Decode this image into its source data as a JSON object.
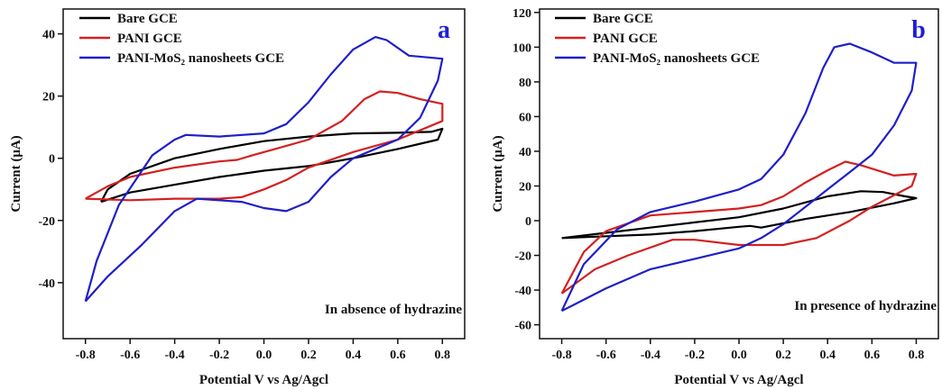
{
  "chart_data": [
    {
      "type": "line",
      "panel_label": "a",
      "annotation": "In absence of hydrazine",
      "xlabel": "Potential V vs Ag/Agcl",
      "ylabel": "Current (μA)",
      "xlim": [
        -0.9,
        0.9
      ],
      "ylim": [
        -58,
        48
      ],
      "xticks": [
        -0.8,
        -0.6,
        -0.4,
        -0.2,
        0.0,
        0.2,
        0.4,
        0.6,
        0.8
      ],
      "xtick_labels": [
        "-0.8",
        "-0.6",
        "-0.4",
        "-0.2",
        "0.0",
        "0.2",
        "0.4",
        "0.6",
        "0.8"
      ],
      "yticks": [
        -40,
        -20,
        0,
        20,
        40
      ],
      "ytick_labels": [
        "-40",
        "-20",
        "0",
        "20",
        "40"
      ],
      "legend_position": "top-left",
      "series": [
        {
          "name": "Bare GCE",
          "color": "#000000",
          "points": [
            [
              -0.73,
              -14
            ],
            [
              -0.7,
              -10
            ],
            [
              -0.6,
              -5
            ],
            [
              -0.4,
              0
            ],
            [
              -0.2,
              3
            ],
            [
              0.0,
              5.5
            ],
            [
              0.2,
              7
            ],
            [
              0.4,
              8
            ],
            [
              0.6,
              8.2
            ],
            [
              0.75,
              8.5
            ],
            [
              0.8,
              9.5
            ],
            [
              0.78,
              6
            ],
            [
              0.6,
              3
            ],
            [
              0.4,
              0
            ],
            [
              0.2,
              -2.5
            ],
            [
              0.0,
              -4
            ],
            [
              -0.2,
              -6
            ],
            [
              -0.4,
              -8.5
            ],
            [
              -0.6,
              -11
            ],
            [
              -0.73,
              -14
            ]
          ]
        },
        {
          "name": "PANI GCE",
          "color": "#d42020",
          "points": [
            [
              -0.8,
              -13
            ],
            [
              -0.7,
              -9
            ],
            [
              -0.6,
              -6
            ],
            [
              -0.4,
              -3
            ],
            [
              -0.2,
              -1
            ],
            [
              -0.12,
              -0.5
            ],
            [
              -0.05,
              1
            ],
            [
              0.05,
              3
            ],
            [
              0.2,
              6
            ],
            [
              0.35,
              12
            ],
            [
              0.45,
              19
            ],
            [
              0.52,
              21.5
            ],
            [
              0.6,
              21
            ],
            [
              0.7,
              19
            ],
            [
              0.8,
              17.5
            ],
            [
              0.8,
              12
            ],
            [
              0.6,
              6
            ],
            [
              0.4,
              2
            ],
            [
              0.2,
              -3
            ],
            [
              0.1,
              -7
            ],
            [
              0.0,
              -10
            ],
            [
              -0.1,
              -12.5
            ],
            [
              -0.2,
              -13
            ],
            [
              -0.4,
              -13
            ],
            [
              -0.6,
              -13.5
            ],
            [
              -0.8,
              -13
            ]
          ]
        },
        {
          "name": "PANI-MoS₂ nanosheets GCE",
          "color": "#1f1fc8",
          "points": [
            [
              -0.8,
              -46
            ],
            [
              -0.75,
              -33
            ],
            [
              -0.65,
              -15
            ],
            [
              -0.5,
              1
            ],
            [
              -0.4,
              6
            ],
            [
              -0.35,
              7.5
            ],
            [
              -0.2,
              7
            ],
            [
              0.0,
              8
            ],
            [
              0.1,
              11
            ],
            [
              0.2,
              18
            ],
            [
              0.3,
              27
            ],
            [
              0.4,
              35
            ],
            [
              0.5,
              39
            ],
            [
              0.55,
              38
            ],
            [
              0.65,
              33
            ],
            [
              0.8,
              32
            ],
            [
              0.78,
              25
            ],
            [
              0.7,
              13
            ],
            [
              0.6,
              6
            ],
            [
              0.4,
              0
            ],
            [
              0.3,
              -6
            ],
            [
              0.2,
              -14
            ],
            [
              0.1,
              -17
            ],
            [
              0.0,
              -16
            ],
            [
              -0.1,
              -14
            ],
            [
              -0.3,
              -13
            ],
            [
              -0.4,
              -17
            ],
            [
              -0.55,
              -28
            ],
            [
              -0.7,
              -38
            ],
            [
              -0.8,
              -46
            ]
          ]
        }
      ]
    },
    {
      "type": "line",
      "panel_label": "b",
      "annotation": "In presence of hydrazine",
      "xlabel": "Potential V vs Ag/Agcl",
      "ylabel": "Current (μA)",
      "xlim": [
        -0.9,
        0.9
      ],
      "ylim": [
        -68,
        122
      ],
      "xticks": [
        -0.8,
        -0.6,
        -0.4,
        -0.2,
        0.0,
        0.2,
        0.4,
        0.6,
        0.8
      ],
      "xtick_labels": [
        "-0.8",
        "-0.6",
        "-0.4",
        "-0.2",
        "0.0",
        "0.2",
        "0.4",
        "0.6",
        "0.8"
      ],
      "yticks": [
        -60,
        -40,
        -20,
        0,
        20,
        40,
        60,
        80,
        100,
        120
      ],
      "ytick_labels": [
        "-60",
        "-40",
        "-20",
        "0",
        "20",
        "40",
        "60",
        "80",
        "100",
        "120"
      ],
      "legend_position": "top-left",
      "series": [
        {
          "name": "Bare GCE",
          "color": "#000000",
          "points": [
            [
              -0.8,
              -10
            ],
            [
              -0.6,
              -7
            ],
            [
              -0.4,
              -4
            ],
            [
              -0.2,
              -1
            ],
            [
              0.0,
              2
            ],
            [
              0.2,
              7
            ],
            [
              0.4,
              14
            ],
            [
              0.55,
              17
            ],
            [
              0.65,
              16.5
            ],
            [
              0.75,
              14
            ],
            [
              0.8,
              13
            ],
            [
              0.7,
              10
            ],
            [
              0.5,
              5
            ],
            [
              0.3,
              1
            ],
            [
              0.1,
              -4
            ],
            [
              0.05,
              -3
            ],
            [
              0.0,
              -3.5
            ],
            [
              -0.2,
              -6
            ],
            [
              -0.4,
              -8
            ],
            [
              -0.6,
              -9
            ],
            [
              -0.8,
              -10
            ]
          ]
        },
        {
          "name": "PANI GCE",
          "color": "#d42020",
          "points": [
            [
              -0.8,
              -42
            ],
            [
              -0.7,
              -18
            ],
            [
              -0.6,
              -6
            ],
            [
              -0.4,
              3
            ],
            [
              -0.2,
              5
            ],
            [
              0.0,
              7
            ],
            [
              0.1,
              9
            ],
            [
              0.2,
              14
            ],
            [
              0.3,
              22
            ],
            [
              0.4,
              29
            ],
            [
              0.48,
              34
            ],
            [
              0.55,
              32
            ],
            [
              0.7,
              26
            ],
            [
              0.8,
              27
            ],
            [
              0.78,
              20
            ],
            [
              0.6,
              8
            ],
            [
              0.5,
              0
            ],
            [
              0.35,
              -10
            ],
            [
              0.2,
              -14
            ],
            [
              0.0,
              -14
            ],
            [
              -0.2,
              -11
            ],
            [
              -0.3,
              -11
            ],
            [
              -0.5,
              -20
            ],
            [
              -0.65,
              -28
            ],
            [
              -0.8,
              -42
            ]
          ]
        },
        {
          "name": "PANI-MoS₂ nanosheets GCE",
          "color": "#1f1fc8",
          "points": [
            [
              -0.8,
              -52
            ],
            [
              -0.7,
              -25
            ],
            [
              -0.55,
              -5
            ],
            [
              -0.4,
              5
            ],
            [
              -0.2,
              11
            ],
            [
              0.0,
              18
            ],
            [
              0.1,
              24
            ],
            [
              0.2,
              38
            ],
            [
              0.3,
              62
            ],
            [
              0.38,
              88
            ],
            [
              0.43,
              100
            ],
            [
              0.5,
              102
            ],
            [
              0.6,
              97
            ],
            [
              0.7,
              91
            ],
            [
              0.8,
              91
            ],
            [
              0.78,
              75
            ],
            [
              0.7,
              55
            ],
            [
              0.6,
              38
            ],
            [
              0.5,
              28
            ],
            [
              0.4,
              18
            ],
            [
              0.3,
              8
            ],
            [
              0.2,
              -2
            ],
            [
              0.1,
              -10
            ],
            [
              0.0,
              -16
            ],
            [
              -0.1,
              -19
            ],
            [
              -0.2,
              -22
            ],
            [
              -0.4,
              -28
            ],
            [
              -0.6,
              -39
            ],
            [
              -0.8,
              -52
            ]
          ]
        }
      ]
    }
  ]
}
